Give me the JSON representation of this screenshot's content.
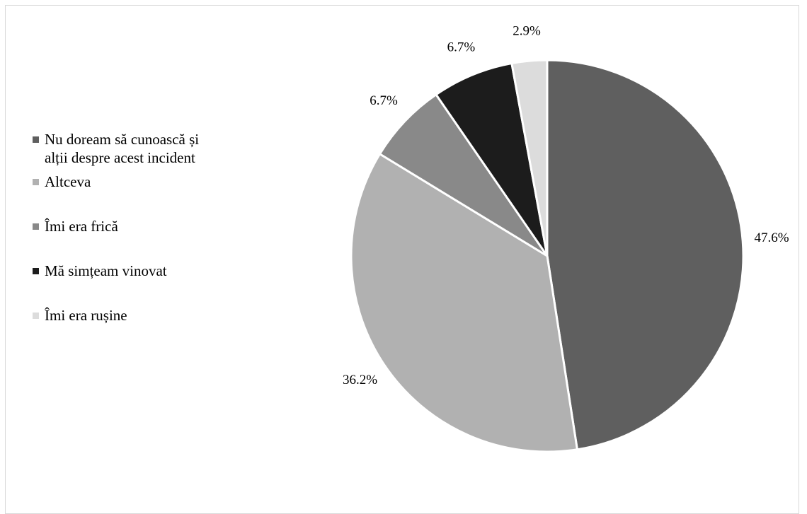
{
  "chart_data": {
    "type": "pie",
    "title": "",
    "legend_position": "left",
    "slices": [
      {
        "label": "Nu doream să cunoască și alții despre acest incident",
        "label_lines": [
          "Nu doream să cunoască și",
          "alții despre acest incident"
        ],
        "value": 47.6,
        "value_label": "47.6%",
        "color": "#5f5f5f"
      },
      {
        "label": "Altceva",
        "label_lines": [
          "Altceva"
        ],
        "value": 36.2,
        "value_label": "36.2%",
        "color": "#b1b1b1"
      },
      {
        "label": "Îmi era frică",
        "label_lines": [
          "Îmi era frică"
        ],
        "value": 6.7,
        "value_label": "6.7%",
        "color": "#898989"
      },
      {
        "label": "Mă simțeam vinovat",
        "label_lines": [
          "Mă simțeam vinovat"
        ],
        "value": 6.7,
        "value_label": "6.7%",
        "color": "#1c1c1c"
      },
      {
        "label": "Îmi era rușine",
        "label_lines": [
          "Îmi era rușine"
        ],
        "value": 2.9,
        "value_label": "2.9%",
        "color": "#dcdcdc"
      }
    ]
  }
}
